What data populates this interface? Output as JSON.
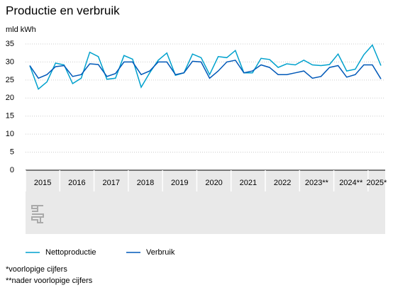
{
  "chart_data": {
    "type": "line",
    "title": "Productie en verbruik",
    "y_label": "mld kWh",
    "categories": [
      "2015",
      null,
      null,
      null,
      "2016",
      null,
      null,
      null,
      "2017",
      null,
      null,
      null,
      "2018",
      null,
      null,
      null,
      "2019",
      null,
      null,
      null,
      "2020",
      null,
      null,
      null,
      "2021",
      null,
      null,
      null,
      "2022",
      null,
      null,
      null,
      "2023**",
      null,
      null,
      null,
      "2024**",
      null,
      null,
      null,
      "2025*",
      null
    ],
    "series": [
      {
        "name": "Nettoproductie",
        "color": "#00a1cd",
        "values": [
          29,
          22.5,
          24.5,
          29.7,
          29.2,
          24,
          25.5,
          32.7,
          31.5,
          25.2,
          25.5,
          31.8,
          30.8,
          23,
          27,
          30.5,
          32.5,
          26.3,
          27,
          32.2,
          31.2,
          26.5,
          31.5,
          31.2,
          33.2,
          27,
          27,
          31,
          30.7,
          28.5,
          29.5,
          29.2,
          30.5,
          29.2,
          29,
          29.3,
          32.2,
          27.5,
          28,
          32,
          34.7,
          29
        ]
      },
      {
        "name": "Verbruik",
        "color": "#0058b8",
        "values": [
          29,
          25.5,
          26.5,
          28.7,
          29,
          26,
          26.5,
          29.5,
          29.3,
          26,
          26.8,
          30,
          30,
          26.5,
          27.5,
          30,
          30,
          26.5,
          27,
          30.2,
          30,
          25.5,
          27.5,
          30,
          30.5,
          27,
          27.5,
          29.2,
          28.5,
          26.5,
          26.5,
          27,
          27.5,
          25.5,
          26,
          28.5,
          29,
          25.8,
          26.5,
          29.2,
          29.2,
          25.3
        ]
      }
    ],
    "ylim": [
      0,
      35
    ],
    "yticks": [
      0,
      5,
      10,
      15,
      20,
      25,
      30,
      35
    ],
    "grid": true,
    "footnotes": [
      "*voorlopige cijfers",
      "**nader voorlopige cijfers"
    ]
  }
}
